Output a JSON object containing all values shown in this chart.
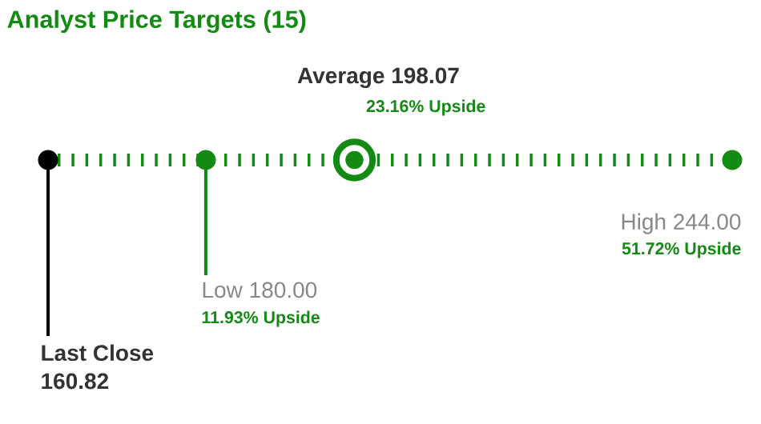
{
  "chart_data": {
    "type": "other",
    "title": "Analyst Price Targets (15)",
    "categories": [
      "Last Close",
      "Low",
      "Average",
      "High"
    ],
    "values": [
      160.82,
      180,
      198.07,
      244
    ],
    "value_labels": [
      "160.82",
      "180.00",
      "198.07",
      "244.00"
    ],
    "colors": [
      "#000000",
      "#138a13",
      "#138a13",
      "#138a13"
    ],
    "annotations": [
      "11.93% Upside",
      "23.16% Upside",
      "51.72% Upside"
    ]
  }
}
